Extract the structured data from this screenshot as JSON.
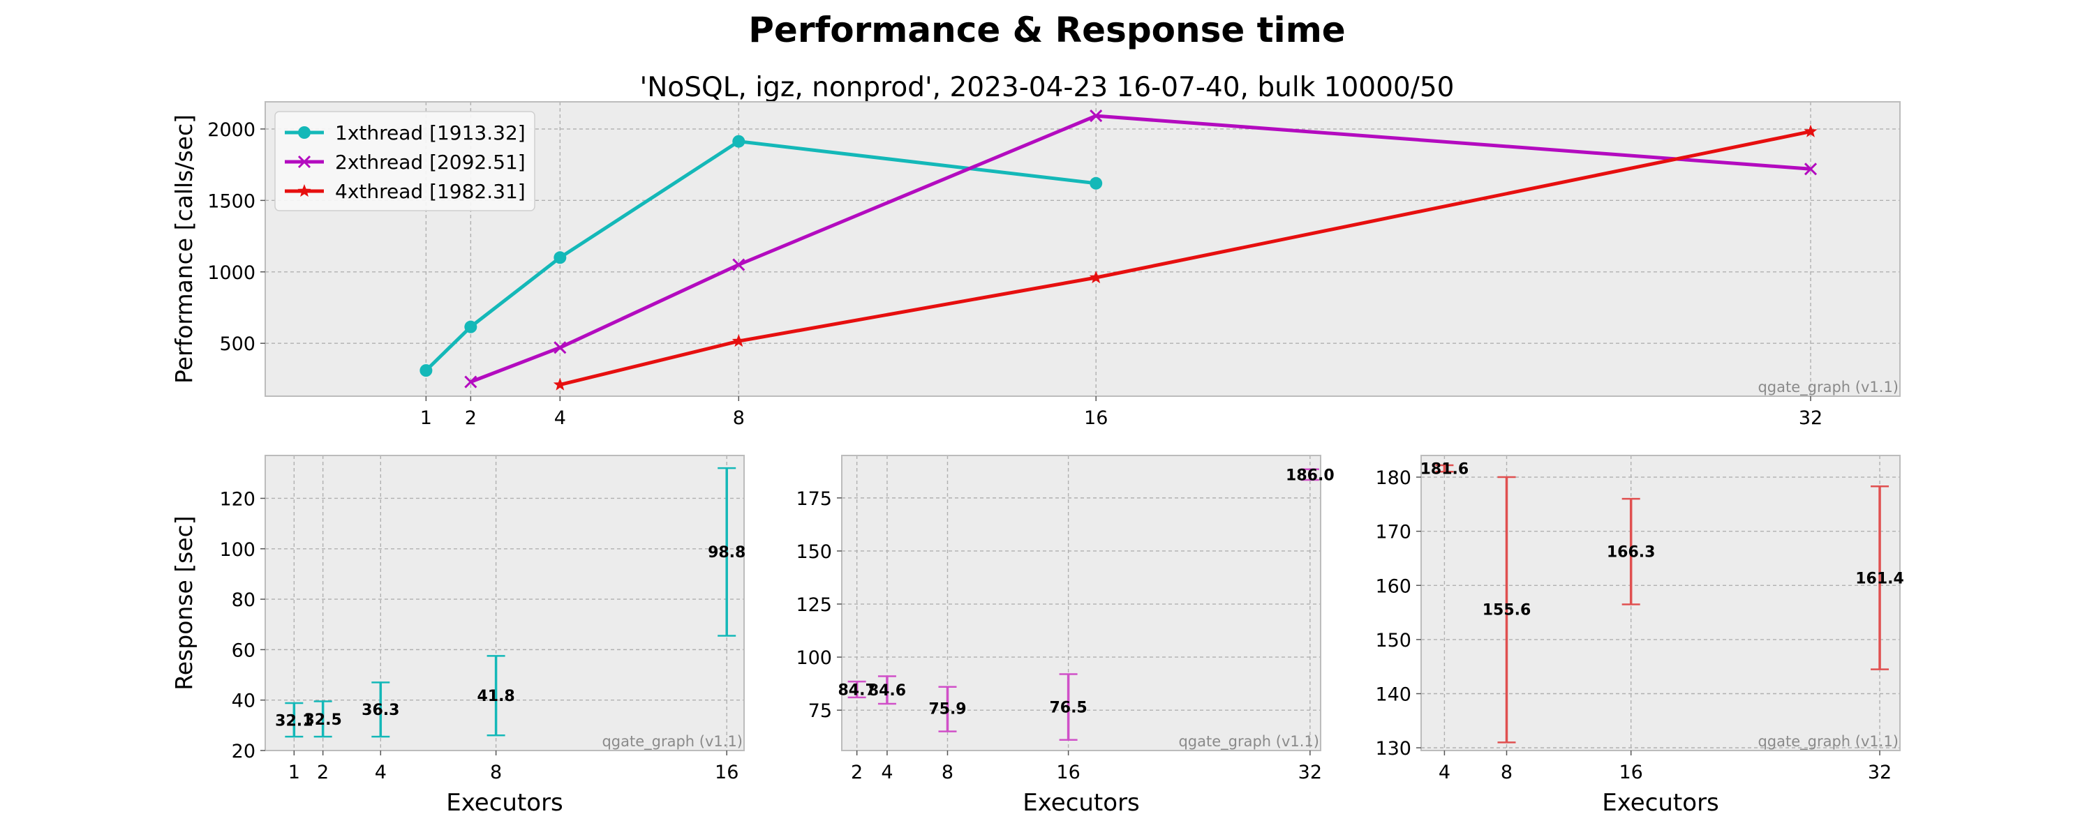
{
  "title": "Performance & Response time",
  "subtitle": "'NoSQL, igz, nonprod', 2023-04-23 16-07-40, bulk 10000/50",
  "colors": {
    "background": "#ffffff",
    "panel": "#ececec",
    "grid": "#b0b0b0",
    "axis": "#bcbcbc",
    "watermark": "#8a8a8a",
    "series1": "#14b8b8",
    "series2": "#b30bbf",
    "series3": "#e60f0f"
  },
  "chart_data": [
    {
      "id": "performance",
      "type": "line",
      "title": "",
      "xlabel": "",
      "ylabel": "Performance [calls/sec]",
      "xlim": [
        -2.6,
        34.0
      ],
      "ylim": [
        130,
        2190
      ],
      "xticks": [
        1,
        2,
        4,
        8,
        16,
        32
      ],
      "yticks": [
        500,
        1000,
        1500,
        2000
      ],
      "grid": true,
      "legend_position": "top-left",
      "watermark": "qgate_graph (v1.1)",
      "series": [
        {
          "name": "1xthread [1913.32]",
          "marker": "circle",
          "color": "#14b8b8",
          "x": [
            1,
            2,
            4,
            8,
            16
          ],
          "y": [
            310,
            615,
            1100,
            1913,
            1620
          ]
        },
        {
          "name": "2xthread [2092.51]",
          "marker": "x",
          "color": "#b30bbf",
          "x": [
            2,
            4,
            8,
            16,
            32
          ],
          "y": [
            230,
            470,
            1050,
            2092,
            1720
          ]
        },
        {
          "name": "4xthread [1982.31]",
          "marker": "star",
          "color": "#e60f0f",
          "x": [
            4,
            8,
            16,
            32
          ],
          "y": [
            210,
            515,
            960,
            1982
          ]
        }
      ]
    },
    {
      "id": "response-1xthread",
      "type": "errorbar",
      "xlabel": "Executors",
      "ylabel": "Response [sec]",
      "xlim": [
        0.0,
        16.6
      ],
      "ylim": [
        20,
        137
      ],
      "xticks": [
        1,
        2,
        4,
        8,
        16
      ],
      "yticks": [
        20,
        40,
        60,
        80,
        100,
        120
      ],
      "grid": true,
      "watermark": "qgate_graph (v1.1)",
      "color": "#14b8b8",
      "points": [
        {
          "x": 1,
          "y": 32.1,
          "low": 25.5,
          "high": 38.8,
          "label": "32.1"
        },
        {
          "x": 2,
          "y": 32.5,
          "low": 25.5,
          "high": 39.5,
          "label": "32.5"
        },
        {
          "x": 4,
          "y": 36.3,
          "low": 25.5,
          "high": 47.0,
          "label": "36.3"
        },
        {
          "x": 8,
          "y": 41.8,
          "low": 26.0,
          "high": 57.5,
          "label": "41.8"
        },
        {
          "x": 16,
          "y": 98.8,
          "low": 65.5,
          "high": 132.0,
          "label": "98.8"
        }
      ]
    },
    {
      "id": "response-2xthread",
      "type": "errorbar",
      "xlabel": "Executors",
      "ylabel": "",
      "xlim": [
        1.0,
        32.7
      ],
      "ylim": [
        56,
        195
      ],
      "xticks": [
        2,
        4,
        8,
        16,
        32
      ],
      "yticks": [
        75,
        100,
        125,
        150,
        175
      ],
      "grid": true,
      "watermark": "qgate_graph (v1.1)",
      "color": "#d050c8",
      "points": [
        {
          "x": 2,
          "y": 84.7,
          "low": 81.0,
          "high": 88.5,
          "label": "84.7"
        },
        {
          "x": 4,
          "y": 84.6,
          "low": 78.0,
          "high": 91.0,
          "label": "84.6"
        },
        {
          "x": 8,
          "y": 75.9,
          "low": 65.0,
          "high": 86.0,
          "label": "75.9"
        },
        {
          "x": 16,
          "y": 76.5,
          "low": 61.0,
          "high": 92.0,
          "label": "76.5"
        },
        {
          "x": 32,
          "y": 186.0,
          "low": 183.5,
          "high": 188.5,
          "label": "186.0"
        }
      ]
    },
    {
      "id": "response-4xthread",
      "type": "errorbar",
      "xlabel": "Executors",
      "ylabel": "",
      "xlim": [
        2.5,
        33.3
      ],
      "ylim": [
        129.5,
        184
      ],
      "xticks": [
        4,
        8,
        16,
        32
      ],
      "yticks": [
        130,
        140,
        150,
        160,
        170,
        180
      ],
      "grid": true,
      "watermark": "qgate_graph (v1.1)",
      "color": "#e05050",
      "points": [
        {
          "x": 4,
          "y": 181.6,
          "low": 181.0,
          "high": 182.2,
          "label": "181.6"
        },
        {
          "x": 8,
          "y": 155.6,
          "low": 131.0,
          "high": 180.0,
          "label": "155.6"
        },
        {
          "x": 16,
          "y": 166.3,
          "low": 156.5,
          "high": 176.0,
          "label": "166.3"
        },
        {
          "x": 32,
          "y": 161.4,
          "low": 144.5,
          "high": 178.3,
          "label": "161.4"
        }
      ]
    }
  ]
}
